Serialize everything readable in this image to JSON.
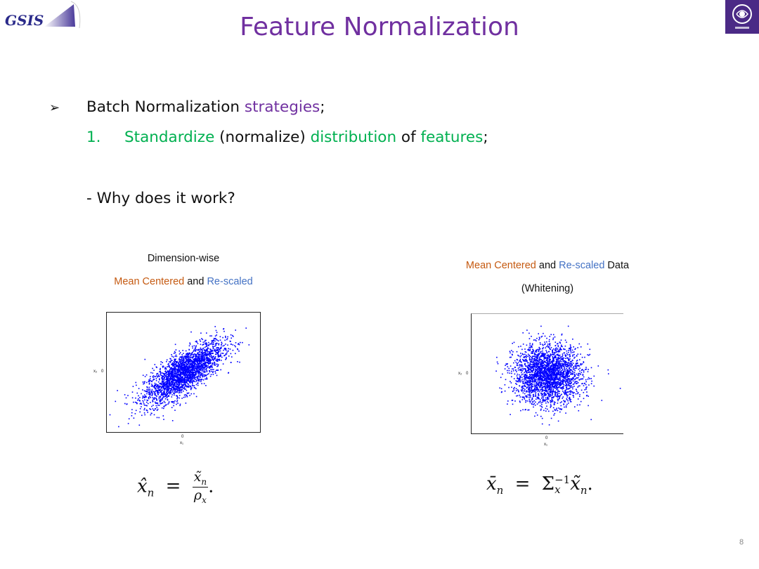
{
  "header": {
    "logo_text": "GSIS",
    "title": "Feature Normalization"
  },
  "content": {
    "bullet_marker": "➢",
    "line1": {
      "text": "Batch Normalization ",
      "highlight": "strategies",
      "end": ";"
    },
    "line2": {
      "number": "1.",
      "w1": "Standardize",
      "w2": " (normalize) ",
      "w3": "distribution",
      "w4": " of ",
      "w5": "features",
      "w6": ";"
    },
    "line3": "- Why does it work?"
  },
  "left_panel": {
    "caption_line1": "Dimension-wise",
    "caption_part1": "Mean Centered",
    "caption_part2": " and ",
    "caption_part3": "Re-scaled",
    "x_tick": "0",
    "x_label": "x₁",
    "y_tick": "0",
    "y_label": "x₂",
    "formula": {
      "lhs": "x̂",
      "sub": "n",
      "num": "x̃",
      "num_sub": "n",
      "den": "ρ",
      "den_sub": "x"
    }
  },
  "right_panel": {
    "caption_part1": "Mean Centered",
    "caption_part2": " and ",
    "caption_part3": "Re-scaled",
    "caption_part4": " Data",
    "caption_line2": "(Whitening)",
    "x_tick": "0",
    "x_label": "x₁",
    "y_tick": "0",
    "y_label": "x₂",
    "formula": {
      "lhs": "x̄",
      "sub": "n",
      "sigma": "Σ",
      "sigma_sub": "x",
      "sigma_sup": "−1",
      "rhs": "x̃",
      "rhs_sub": "n"
    }
  },
  "footer": {
    "page_number": "8"
  },
  "colors": {
    "title": "#7030a0",
    "highlight_purple": "#7030a0",
    "highlight_green": "#00b050",
    "caption_orange": "#c55a11",
    "caption_blue": "#4472c4",
    "scatter": "#0000ff",
    "logo_bg": "#4b2a86"
  }
}
